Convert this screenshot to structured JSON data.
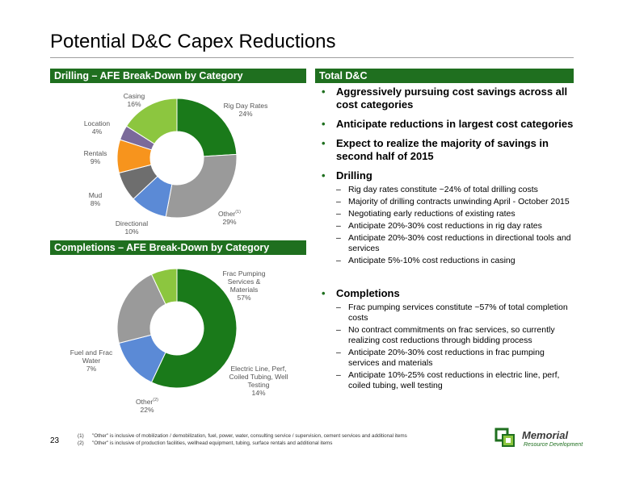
{
  "title": "Potential D&C Capex Reductions",
  "sections": {
    "drilling": "Drilling – AFE Break-Down by Category",
    "completions": "Completions – AFE Break-Down by Category",
    "total": "Total D&C"
  },
  "chart_data": [
    {
      "type": "pie",
      "categories": [
        "Rig Day Rates",
        "Other",
        "Directional",
        "Mud",
        "Rentals",
        "Location",
        "Casing"
      ],
      "values": [
        24,
        29,
        10,
        8,
        9,
        4,
        16
      ],
      "colors": [
        "#1a7a1a",
        "#9a9a9a",
        "#5b8ad6",
        "#6e6e6e",
        "#f7941d",
        "#7b6a9a",
        "#8cc63f"
      ],
      "labels": {
        "rig_name": "Rig Day Rates",
        "rig_pct": "24%",
        "other_name": "Other",
        "other_sup": "(1)",
        "other_pct": "29%",
        "dir_name": "Directional",
        "dir_pct": "10%",
        "mud_name": "Mud",
        "mud_pct": "8%",
        "rent_name": "Rentals",
        "rent_pct": "9%",
        "loc_name": "Location",
        "loc_pct": "4%",
        "cas_name": "Casing",
        "cas_pct": "16%"
      }
    },
    {
      "type": "pie",
      "categories": [
        "Frac Pumping Services & Materials",
        "Electric Line, Perf, Coiled Tubing, Well Testing",
        "Other",
        "Fuel and Frac Water"
      ],
      "values": [
        57,
        14,
        22,
        7
      ],
      "colors": [
        "#1a7a1a",
        "#5b8ad6",
        "#9a9a9a",
        "#8cc63f"
      ],
      "labels": {
        "frac_l1": "Frac Pumping",
        "frac_l2": "Services &",
        "frac_l3": "Materials",
        "frac_pct": "57%",
        "elec_l1": "Electric Line, Perf,",
        "elec_l2": "Coiled Tubing, Well",
        "elec_l3": "Testing",
        "elec_pct": "14%",
        "other_name": "Other",
        "other_sup": "(2)",
        "other_pct": "22%",
        "fuel_l1": "Fuel and Frac",
        "fuel_l2": "Water",
        "fuel_pct": "7%"
      }
    }
  ],
  "bullets": {
    "b1": "Aggressively pursuing cost savings across all cost categories",
    "b2": "Anticipate reductions in largest cost categories",
    "b3": "Expect to realize the majority of savings in second half of 2015",
    "drilling": {
      "head": "Drilling",
      "items": [
        "Rig day rates constitute ~24% of total drilling costs",
        "Majority of drilling contracts unwinding April - October 2015",
        "Negotiating early reductions of existing rates",
        "Anticipate 20%-30% cost reductions in rig day rates",
        "Anticipate 20%-30% cost reductions in directional tools and services",
        "Anticipate 5%-10% cost reductions in casing"
      ]
    },
    "completions": {
      "head": "Completions",
      "items": [
        "Frac pumping services constitute ~57% of total completion costs",
        "No contract commitments on frac services, so currently realizing cost reductions through bidding process",
        "Anticipate 20%-30% cost reductions in frac pumping services and materials",
        "Anticipate 10%-25% cost reductions in electric line, perf, coiled tubing, well testing"
      ]
    }
  },
  "footnotes": [
    {
      "num": "(1)",
      "text": "\"Other\" is inclusive of mobilization / demobilization, fuel, power, water, consulting service / supervision, cement services and additional items"
    },
    {
      "num": "(2)",
      "text": "\"Other\" is inclusive of production facilities, wellhead equipment, tubing, surface rentals and additional items"
    }
  ],
  "page_number": "23",
  "logo": {
    "name": "Memorial",
    "sub": "Resource Development"
  }
}
